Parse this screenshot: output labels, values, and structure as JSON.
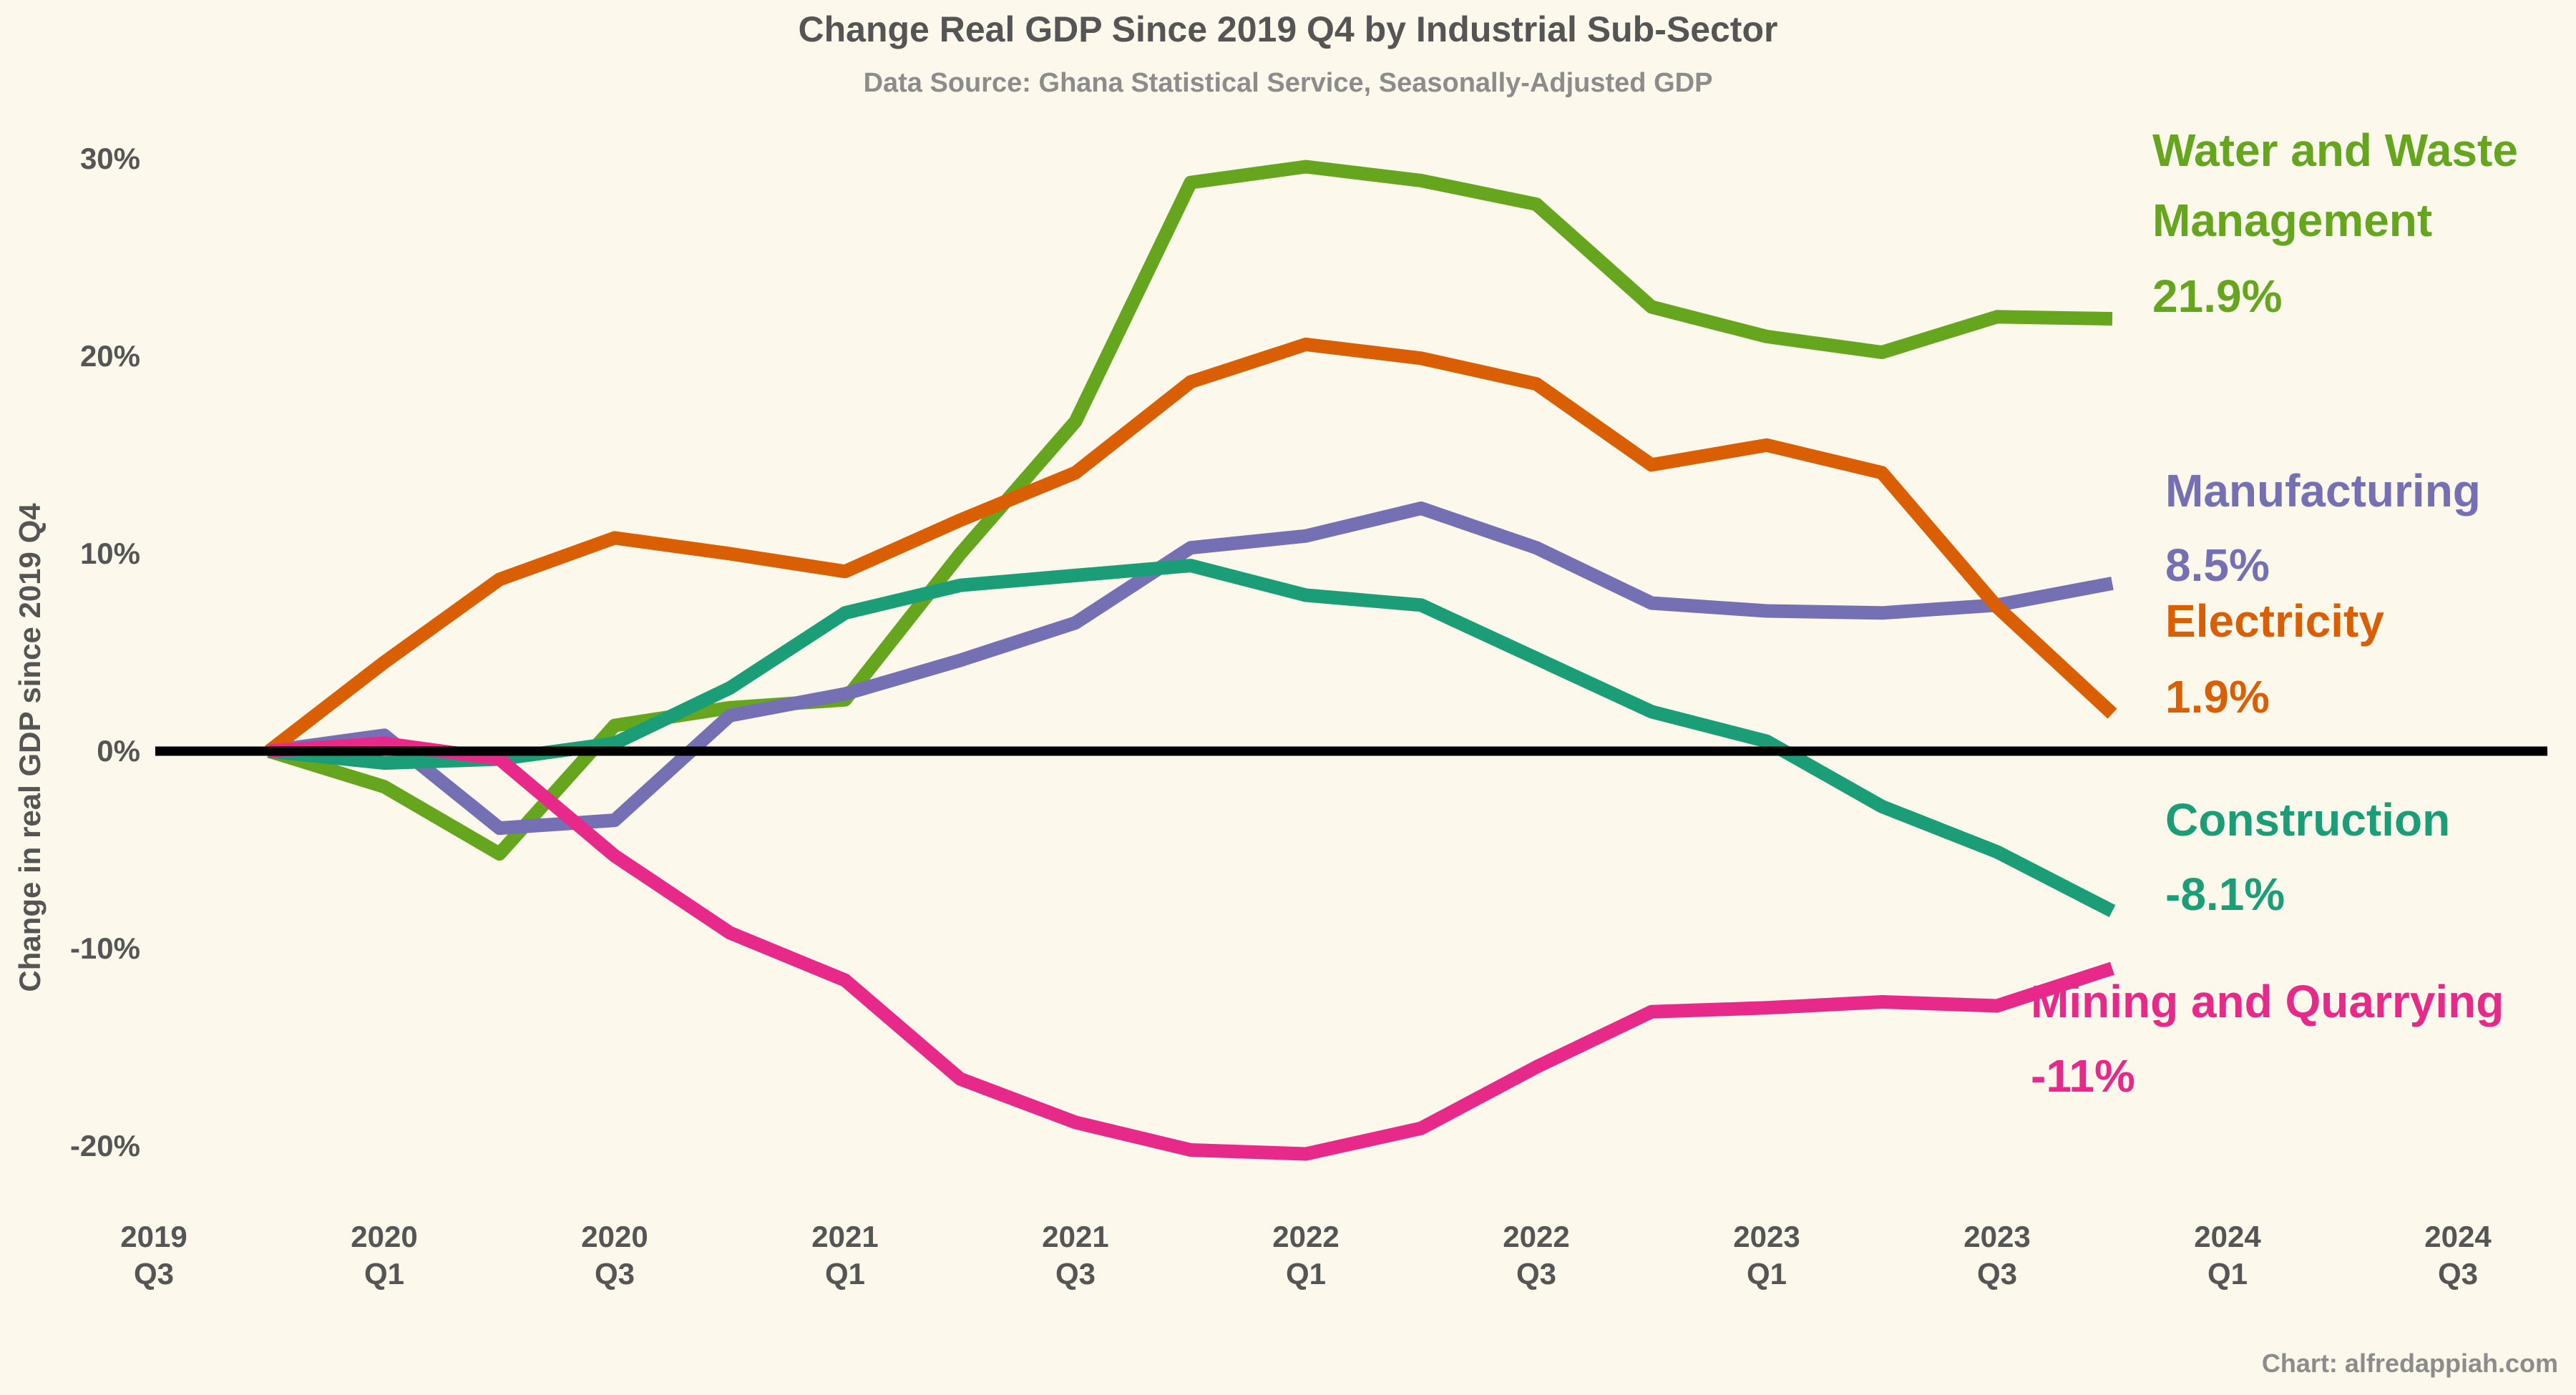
{
  "title": "Change Real GDP Since 2019 Q4 by Industrial Sub-Sector",
  "subtitle": "Data Source: Ghana Statistical Service, Seasonally-Adjusted GDP",
  "caption": "Chart: alfredappiah.com",
  "chart_data": {
    "type": "line",
    "ylabel": "Change in real GDP since 2019 Q4",
    "xlabel": "",
    "ylim": [
      -23,
      32
    ],
    "y_ticks": [
      {
        "value": 30,
        "label": "30%"
      },
      {
        "value": 20,
        "label": "20%"
      },
      {
        "value": 10,
        "label": "10%"
      },
      {
        "value": 0,
        "label": "0%"
      },
      {
        "value": -10,
        "label": "-10%"
      },
      {
        "value": -20,
        "label": "-20%"
      }
    ],
    "x_ticks": [
      {
        "year": "2019",
        "q": "Q3"
      },
      {
        "year": "2020",
        "q": "Q1"
      },
      {
        "year": "2020",
        "q": "Q3"
      },
      {
        "year": "2021",
        "q": "Q1"
      },
      {
        "year": "2021",
        "q": "Q3"
      },
      {
        "year": "2022",
        "q": "Q1"
      },
      {
        "year": "2022",
        "q": "Q3"
      },
      {
        "year": "2023",
        "q": "Q1"
      },
      {
        "year": "2023",
        "q": "Q3"
      },
      {
        "year": "2024",
        "q": "Q1"
      },
      {
        "year": "2024",
        "q": "Q3"
      }
    ],
    "x": [
      "2019 Q4",
      "2020 Q1",
      "2020 Q2",
      "2020 Q3",
      "2020 Q4",
      "2021 Q1",
      "2021 Q2",
      "2021 Q3",
      "2021 Q4",
      "2022 Q1",
      "2022 Q2",
      "2022 Q3",
      "2022 Q4",
      "2023 Q1",
      "2023 Q2",
      "2023 Q3",
      "2023 Q4"
    ],
    "zero_line": true,
    "grid": false,
    "series": [
      {
        "name": "Water and Waste Management",
        "label_lines": [
          "Water and Waste",
          "Management"
        ],
        "end_label": "21.9%",
        "color": "#66a61e",
        "values": [
          0,
          -1.8,
          -5.2,
          1.3,
          2.2,
          2.6,
          10.0,
          16.7,
          28.8,
          29.6,
          28.9,
          27.7,
          22.5,
          21.0,
          20.2,
          22.0,
          21.9
        ]
      },
      {
        "name": "Manufacturing",
        "label_lines": [
          "Manufacturing"
        ],
        "end_label": "8.5%",
        "color": "#7570b3",
        "values": [
          0,
          0.8,
          -3.9,
          -3.5,
          1.8,
          2.9,
          4.6,
          6.5,
          10.3,
          10.9,
          12.3,
          10.3,
          7.5,
          7.1,
          7.0,
          7.4,
          8.5
        ]
      },
      {
        "name": "Electricity",
        "label_lines": [
          "Electricity"
        ],
        "end_label": "1.9%",
        "color": "#d95f02",
        "values": [
          0,
          4.5,
          8.7,
          10.8,
          10.0,
          9.1,
          11.7,
          14.1,
          18.7,
          20.6,
          19.9,
          18.6,
          14.5,
          15.5,
          14.1,
          7.3,
          1.9
        ]
      },
      {
        "name": "Construction",
        "label_lines": [
          "Construction"
        ],
        "end_label": "-8.1%",
        "color": "#1b9e77",
        "values": [
          0,
          -0.6,
          -0.4,
          0.4,
          3.2,
          7.0,
          8.4,
          8.9,
          9.4,
          7.9,
          7.4,
          4.7,
          2.0,
          0.5,
          -2.8,
          -5.1,
          -8.1
        ]
      },
      {
        "name": "Mining and Quarrying",
        "label_lines": [
          "Mining and Quarrying"
        ],
        "end_label": "-11%",
        "color": "#e7298a",
        "values": [
          0,
          0.4,
          -0.4,
          -5.3,
          -9.2,
          -11.6,
          -16.6,
          -18.8,
          -20.2,
          -20.4,
          -19.1,
          -16.0,
          -13.2,
          -13.0,
          -12.7,
          -12.9,
          -11.0
        ]
      }
    ]
  }
}
